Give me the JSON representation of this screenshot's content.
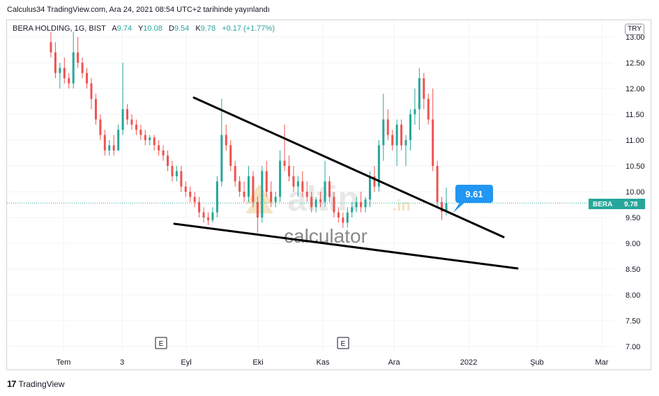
{
  "header": {
    "attribution": "Calculus34 TradingView.com, Ara 24, 2021 08:54 UTC+2 tarihinde yayınlandı"
  },
  "legend": {
    "symbol": "BERA HOLDING, 1G, BIST",
    "open_label": "A",
    "open": "9.74",
    "high_label": "Y",
    "high": "10.08",
    "low_label": "D",
    "low": "9.54",
    "close_label": "K",
    "close": "9.78",
    "change": "+0.17 (+1.77%)"
  },
  "currency": "TRY",
  "footer": {
    "logo_text": "TradingView",
    "logo_icon": "tradingview-logo-icon"
  },
  "colors": {
    "up": "#26a69a",
    "down": "#ef5350",
    "grid": "#f0f3fa",
    "trendline": "#000000",
    "callout": "#2196f3",
    "price_line": "#26a69a"
  },
  "watermark": {
    "brand_main": "altin",
    "brand_suffix": ".in",
    "brand_sub": "calculator"
  },
  "chart_data": {
    "type": "candlestick",
    "symbol": "BERA HOLDING",
    "interval": "1G",
    "exchange": "BIST",
    "ylim": [
      6.9,
      13.1
    ],
    "y_ticks": [
      "7.00",
      "7.50",
      "8.00",
      "8.50",
      "9.00",
      "9.50",
      "10.00",
      "10.50",
      "11.00",
      "11.50",
      "12.00",
      "12.50",
      "13.00"
    ],
    "x_ticks": [
      "Tem",
      "3",
      "Eyl",
      "Eki",
      "Kas",
      "Ara",
      "2022",
      "Şub",
      "Mar"
    ],
    "last_price_label": {
      "symbol": "BERA",
      "value": "9.78"
    },
    "callout": "9.61",
    "events": [
      "E",
      "E"
    ],
    "grid": true,
    "candles": [
      [
        12.9,
        13.1,
        12.6,
        12.7
      ],
      [
        12.7,
        12.9,
        12.2,
        12.3
      ],
      [
        12.3,
        12.5,
        12.0,
        12.4
      ],
      [
        12.4,
        12.6,
        12.1,
        12.2
      ],
      [
        12.2,
        12.3,
        12.0,
        12.1
      ],
      [
        12.1,
        13.1,
        12.0,
        12.7
      ],
      [
        12.7,
        13.0,
        12.4,
        12.5
      ],
      [
        12.5,
        12.6,
        12.2,
        12.3
      ],
      [
        12.3,
        12.4,
        12.0,
        12.1
      ],
      [
        12.1,
        12.2,
        11.6,
        11.8
      ],
      [
        11.8,
        11.9,
        11.3,
        11.4
      ],
      [
        11.4,
        11.5,
        11.0,
        11.1
      ],
      [
        11.1,
        11.2,
        10.7,
        10.8
      ],
      [
        10.8,
        11.0,
        10.7,
        10.9
      ],
      [
        10.9,
        11.1,
        10.7,
        10.8
      ],
      [
        10.8,
        11.3,
        10.8,
        11.2
      ],
      [
        11.2,
        12.5,
        11.1,
        11.6
      ],
      [
        11.6,
        11.7,
        11.3,
        11.4
      ],
      [
        11.4,
        11.5,
        11.2,
        11.3
      ],
      [
        11.3,
        11.4,
        11.1,
        11.2
      ],
      [
        11.2,
        11.3,
        11.0,
        11.1
      ],
      [
        11.1,
        11.2,
        10.9,
        11.0
      ],
      [
        11.0,
        11.1,
        10.9,
        11.05
      ],
      [
        11.05,
        11.1,
        10.8,
        10.9
      ],
      [
        10.9,
        11.0,
        10.7,
        10.8
      ],
      [
        10.8,
        10.9,
        10.6,
        10.7
      ],
      [
        10.7,
        10.8,
        10.4,
        10.5
      ],
      [
        10.5,
        10.6,
        10.2,
        10.3
      ],
      [
        10.3,
        10.5,
        10.2,
        10.4
      ],
      [
        10.4,
        10.5,
        10.0,
        10.1
      ],
      [
        10.1,
        10.2,
        9.9,
        10.0
      ],
      [
        10.0,
        10.1,
        9.8,
        9.9
      ],
      [
        9.9,
        10.0,
        9.7,
        9.8
      ],
      [
        9.8,
        9.9,
        9.5,
        9.6
      ],
      [
        9.6,
        9.7,
        9.4,
        9.5
      ],
      [
        9.5,
        9.6,
        9.35,
        9.45
      ],
      [
        9.45,
        9.7,
        9.4,
        9.6
      ],
      [
        9.6,
        10.3,
        9.5,
        10.2
      ],
      [
        10.2,
        11.8,
        10.1,
        11.1
      ],
      [
        11.1,
        11.3,
        10.8,
        10.9
      ],
      [
        10.9,
        11.0,
        10.4,
        10.5
      ],
      [
        10.5,
        10.6,
        10.1,
        10.2
      ],
      [
        10.2,
        10.3,
        9.9,
        10.0
      ],
      [
        10.0,
        10.2,
        9.8,
        9.9
      ],
      [
        9.9,
        10.5,
        9.8,
        10.3
      ],
      [
        10.3,
        10.4,
        9.7,
        9.8
      ],
      [
        9.8,
        9.9,
        9.2,
        9.5
      ],
      [
        9.5,
        10.5,
        9.4,
        10.4
      ],
      [
        10.4,
        10.6,
        9.9,
        10.0
      ],
      [
        10.0,
        10.2,
        9.7,
        9.8
      ],
      [
        9.8,
        10.0,
        9.7,
        9.9
      ],
      [
        9.9,
        10.8,
        9.8,
        10.6
      ],
      [
        10.6,
        11.3,
        10.4,
        10.5
      ],
      [
        10.5,
        10.7,
        10.2,
        10.3
      ],
      [
        10.3,
        10.5,
        10.0,
        10.1
      ],
      [
        10.1,
        10.3,
        9.9,
        10.2
      ],
      [
        10.2,
        10.4,
        9.9,
        10.0
      ],
      [
        10.0,
        10.2,
        9.8,
        9.9
      ],
      [
        9.9,
        10.0,
        9.6,
        9.7
      ],
      [
        9.7,
        9.9,
        9.6,
        9.85
      ],
      [
        9.85,
        10.0,
        9.7,
        9.8
      ],
      [
        9.8,
        10.6,
        9.7,
        10.2
      ],
      [
        10.2,
        10.3,
        9.8,
        9.9
      ],
      [
        9.9,
        10.0,
        9.5,
        9.6
      ],
      [
        9.6,
        9.7,
        9.4,
        9.5
      ],
      [
        9.5,
        9.6,
        9.3,
        9.4
      ],
      [
        9.4,
        9.7,
        9.3,
        9.6
      ],
      [
        9.6,
        9.8,
        9.5,
        9.7
      ],
      [
        9.7,
        9.9,
        9.6,
        9.8
      ],
      [
        9.8,
        10.0,
        9.6,
        9.7
      ],
      [
        9.7,
        9.9,
        9.6,
        9.85
      ],
      [
        9.85,
        10.4,
        9.7,
        10.3
      ],
      [
        10.3,
        10.5,
        10.0,
        10.1
      ],
      [
        10.1,
        11.0,
        10.0,
        10.9
      ],
      [
        10.9,
        11.9,
        10.6,
        11.4
      ],
      [
        11.4,
        11.6,
        11.0,
        11.1
      ],
      [
        11.1,
        11.2,
        10.8,
        10.9
      ],
      [
        10.9,
        11.4,
        10.5,
        11.3
      ],
      [
        11.3,
        11.4,
        10.8,
        10.9
      ],
      [
        10.9,
        11.1,
        10.5,
        11.0
      ],
      [
        11.0,
        11.6,
        10.8,
        11.5
      ],
      [
        11.5,
        12.0,
        11.3,
        11.6
      ],
      [
        11.6,
        12.4,
        11.2,
        12.2
      ],
      [
        12.2,
        12.3,
        11.6,
        11.8
      ],
      [
        11.8,
        11.9,
        11.3,
        11.4
      ],
      [
        11.4,
        12.0,
        10.4,
        10.5
      ],
      [
        10.5,
        10.6,
        9.7,
        9.8
      ],
      [
        9.8,
        9.9,
        9.45,
        9.61
      ],
      [
        9.61,
        10.08,
        9.54,
        9.78
      ]
    ]
  }
}
